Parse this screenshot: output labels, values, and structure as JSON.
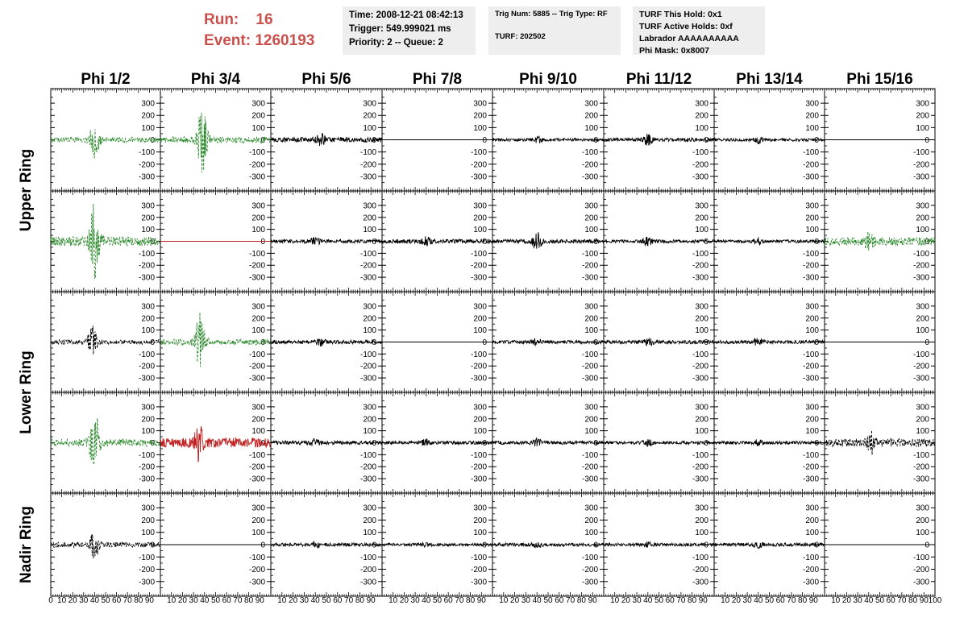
{
  "header": {
    "run_label": "Run:",
    "run_value": "16",
    "event_label": "Event:",
    "event_value": "1260193",
    "time": "Time: 2008-12-21 08:42:13",
    "trigger": "Trigger: 549.999021 ms",
    "priority": "Priority: 2 -- Queue: 2",
    "trig_num": "Trig Num: 5885 -- Trig Type: RF",
    "turf": "TURF: 202502",
    "turf_this_hold": "TURF This Hold: 0x1",
    "turf_active_holds": "TURF Active Holds: 0xf",
    "labrador": "Labrador AAAAAAAAAA",
    "phi_mask": "Phi Mask: 0x8007"
  },
  "colors": {
    "header_red": "#c9504b",
    "trace_black": "#000000",
    "trace_green": "#2e8b2e",
    "trace_red": "#c02020",
    "info_bg": "#eeeeee"
  },
  "chart_data": {
    "type": "line",
    "columns": [
      "Phi 1/2",
      "Phi 3/4",
      "Phi 5/6",
      "Phi 7/8",
      "Phi 9/10",
      "Phi 11/12",
      "Phi 13/14",
      "Phi 15/16"
    ],
    "row_groups": [
      {
        "label": "Upper Ring",
        "rows": [
          0,
          1
        ]
      },
      {
        "label": "Lower Ring",
        "rows": [
          2,
          3
        ]
      },
      {
        "label": "Nadir Ring",
        "rows": [
          4
        ]
      }
    ],
    "ylim": [
      -380,
      380
    ],
    "yticks": [
      300,
      200,
      100,
      0,
      -100,
      -200,
      -300
    ],
    "xlim": [
      0,
      100
    ],
    "xticks": [
      0,
      10,
      20,
      30,
      40,
      50,
      60,
      70,
      80,
      90,
      100
    ],
    "xtick_labels": [
      "0",
      "10",
      "20",
      "30",
      "40",
      "50",
      "60",
      "70",
      "80",
      "90",
      "100"
    ],
    "grid": false,
    "panels": [
      [
        {
          "style": "green-dashed",
          "noise": 22,
          "burst_at": 40,
          "burst_amp": 150
        },
        {
          "style": "green-dashed",
          "noise": 25,
          "burst_at": 38,
          "burst_amp": 300
        },
        {
          "style": "black",
          "noise": 20,
          "burst_at": 45,
          "burst_amp": 45
        },
        {
          "style": "flat"
        },
        {
          "style": "black",
          "noise": 12,
          "burst_at": 40,
          "burst_amp": 20
        },
        {
          "style": "black",
          "noise": 14,
          "burst_at": 40,
          "burst_amp": 40
        },
        {
          "style": "black",
          "noise": 12,
          "burst_at": 40,
          "burst_amp": 25
        },
        {
          "style": "flat"
        }
      ],
      [
        {
          "style": "green-dashed",
          "noise": 40,
          "burst_at": 40,
          "burst_amp": 300
        },
        {
          "style": "red-flat"
        },
        {
          "style": "black",
          "noise": 15,
          "burst_at": 40,
          "burst_amp": 25
        },
        {
          "style": "black",
          "noise": 17,
          "burst_at": 40,
          "burst_amp": 30
        },
        {
          "style": "black",
          "noise": 16,
          "burst_at": 40,
          "burst_amp": 70
        },
        {
          "style": "black",
          "noise": 13,
          "burst_at": 40,
          "burst_amp": 30
        },
        {
          "style": "black",
          "noise": 12,
          "burst_at": 40,
          "burst_amp": 25
        },
        {
          "style": "green-dashed",
          "noise": 35,
          "burst_at": 40,
          "burst_amp": 60
        }
      ],
      [
        {
          "style": "black-dashed",
          "noise": 20,
          "burst_at": 38,
          "burst_amp": 120
        },
        {
          "style": "green-dashed",
          "noise": 25,
          "burst_at": 36,
          "burst_amp": 250
        },
        {
          "style": "black",
          "noise": 15,
          "burst_at": 45,
          "burst_amp": 25
        },
        {
          "style": "flat"
        },
        {
          "style": "black",
          "noise": 14,
          "burst_at": 40,
          "burst_amp": 25
        },
        {
          "style": "black",
          "noise": 15,
          "burst_at": 40,
          "burst_amp": 30
        },
        {
          "style": "black",
          "noise": 14,
          "burst_at": 40,
          "burst_amp": 30
        },
        {
          "style": "flat"
        }
      ],
      [
        {
          "style": "green-dashed",
          "noise": 30,
          "burst_at": 40,
          "burst_amp": 280
        },
        {
          "style": "red",
          "noise": 40,
          "burst_at": 35,
          "burst_amp": 130
        },
        {
          "style": "black",
          "noise": 15,
          "burst_at": 40,
          "burst_amp": 25
        },
        {
          "style": "black",
          "noise": 14,
          "burst_at": 40,
          "burst_amp": 25
        },
        {
          "style": "black",
          "noise": 14,
          "burst_at": 40,
          "burst_amp": 25
        },
        {
          "style": "black",
          "noise": 13,
          "burst_at": 40,
          "burst_amp": 25
        },
        {
          "style": "black",
          "noise": 13,
          "burst_at": 40,
          "burst_amp": 20
        },
        {
          "style": "black-dashed",
          "noise": 35,
          "burst_at": 42,
          "burst_amp": 80
        }
      ],
      [
        {
          "style": "black-dashed",
          "noise": 22,
          "burst_at": 40,
          "burst_amp": 100
        },
        {
          "style": "flat"
        },
        {
          "style": "black",
          "noise": 14,
          "burst_at": 40,
          "burst_amp": 20
        },
        {
          "style": "black",
          "noise": 11,
          "burst_at": 40,
          "burst_amp": 15
        },
        {
          "style": "black",
          "noise": 13,
          "burst_at": 40,
          "burst_amp": 20
        },
        {
          "style": "black",
          "noise": 12,
          "burst_at": 40,
          "burst_amp": 15
        },
        {
          "style": "black",
          "noise": 13,
          "burst_at": 40,
          "burst_amp": 20
        },
        {
          "style": "flat"
        }
      ]
    ]
  }
}
